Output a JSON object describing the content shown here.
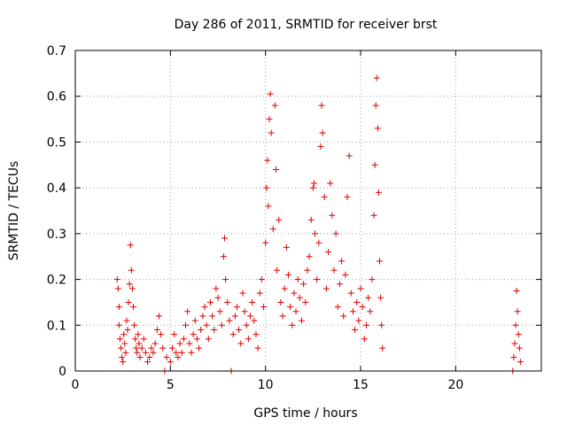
{
  "chart_data": {
    "type": "scatter",
    "title": "Day 286 of 2011, SRMTID for receiver brst",
    "xlabel": "GPS time / hours",
    "ylabel": "SRMTID / TECUs",
    "xlim": [
      0,
      24.5
    ],
    "ylim": [
      0,
      0.7
    ],
    "xticks": [
      0,
      5,
      10,
      15,
      20
    ],
    "yticks": [
      0,
      0.1,
      0.2,
      0.3,
      0.4,
      0.5,
      0.6,
      0.7
    ],
    "grid": true,
    "marker": "+",
    "color": "#e00000",
    "series": [
      {
        "name": "SRMTID",
        "points": [
          [
            2.2,
            0.2
          ],
          [
            2.25,
            0.18
          ],
          [
            2.3,
            0.14
          ],
          [
            2.3,
            0.1
          ],
          [
            2.35,
            0.07
          ],
          [
            2.4,
            0.05
          ],
          [
            2.45,
            0.03
          ],
          [
            2.5,
            0.02
          ],
          [
            2.55,
            0.08
          ],
          [
            2.6,
            0.06
          ],
          [
            2.65,
            0.04
          ],
          [
            2.7,
            0.11
          ],
          [
            2.75,
            0.09
          ],
          [
            2.8,
            0.15
          ],
          [
            2.85,
            0.19
          ],
          [
            2.9,
            0.275
          ],
          [
            2.95,
            0.22
          ],
          [
            3.0,
            0.18
          ],
          [
            3.05,
            0.14
          ],
          [
            3.1,
            0.1
          ],
          [
            3.15,
            0.07
          ],
          [
            3.2,
            0.05
          ],
          [
            3.25,
            0.04
          ],
          [
            3.3,
            0.08
          ],
          [
            3.35,
            0.06
          ],
          [
            3.4,
            0.03
          ],
          [
            3.5,
            0.05
          ],
          [
            3.6,
            0.07
          ],
          [
            3.7,
            0.04
          ],
          [
            3.8,
            0.02
          ],
          [
            3.9,
            0.03
          ],
          [
            4.0,
            0.05
          ],
          [
            4.1,
            0.04
          ],
          [
            4.2,
            0.06
          ],
          [
            4.3,
            0.09
          ],
          [
            4.4,
            0.12
          ],
          [
            4.5,
            0.08
          ],
          [
            4.6,
            0.05
          ],
          [
            4.7,
            0.0
          ],
          [
            4.8,
            0.03
          ],
          [
            5.0,
            0.02
          ],
          [
            5.1,
            0.05
          ],
          [
            5.2,
            0.08
          ],
          [
            5.3,
            0.04
          ],
          [
            5.4,
            0.03
          ],
          [
            5.5,
            0.06
          ],
          [
            5.6,
            0.04
          ],
          [
            5.7,
            0.07
          ],
          [
            5.8,
            0.1
          ],
          [
            5.9,
            0.13
          ],
          [
            6.0,
            0.06
          ],
          [
            6.1,
            0.04
          ],
          [
            6.2,
            0.08
          ],
          [
            6.3,
            0.11
          ],
          [
            6.4,
            0.07
          ],
          [
            6.5,
            0.05
          ],
          [
            6.6,
            0.09
          ],
          [
            6.7,
            0.12
          ],
          [
            6.8,
            0.14
          ],
          [
            6.9,
            0.1
          ],
          [
            7.0,
            0.07
          ],
          [
            7.1,
            0.15
          ],
          [
            7.2,
            0.12
          ],
          [
            7.3,
            0.09
          ],
          [
            7.4,
            0.18
          ],
          [
            7.5,
            0.16
          ],
          [
            7.6,
            0.13
          ],
          [
            7.7,
            0.1
          ],
          [
            7.8,
            0.25
          ],
          [
            7.85,
            0.29
          ],
          [
            7.9,
            0.2
          ],
          [
            8.0,
            0.15
          ],
          [
            8.1,
            0.11
          ],
          [
            8.2,
            0.0
          ],
          [
            8.3,
            0.08
          ],
          [
            8.4,
            0.12
          ],
          [
            8.5,
            0.14
          ],
          [
            8.6,
            0.09
          ],
          [
            8.7,
            0.06
          ],
          [
            8.8,
            0.17
          ],
          [
            8.9,
            0.13
          ],
          [
            9.0,
            0.1
          ],
          [
            9.1,
            0.07
          ],
          [
            9.2,
            0.12
          ],
          [
            9.3,
            0.15
          ],
          [
            9.4,
            0.11
          ],
          [
            9.5,
            0.08
          ],
          [
            9.6,
            0.05
          ],
          [
            9.7,
            0.17
          ],
          [
            9.8,
            0.2
          ],
          [
            9.9,
            0.14
          ],
          [
            10.0,
            0.28
          ],
          [
            10.05,
            0.4
          ],
          [
            10.1,
            0.46
          ],
          [
            10.15,
            0.36
          ],
          [
            10.2,
            0.55
          ],
          [
            10.25,
            0.605
          ],
          [
            10.3,
            0.52
          ],
          [
            10.4,
            0.31
          ],
          [
            10.5,
            0.58
          ],
          [
            10.55,
            0.44
          ],
          [
            10.6,
            0.22
          ],
          [
            10.7,
            0.33
          ],
          [
            10.8,
            0.15
          ],
          [
            10.9,
            0.12
          ],
          [
            11.0,
            0.18
          ],
          [
            11.1,
            0.27
          ],
          [
            11.2,
            0.21
          ],
          [
            11.3,
            0.14
          ],
          [
            11.4,
            0.1
          ],
          [
            11.5,
            0.17
          ],
          [
            11.6,
            0.13
          ],
          [
            11.7,
            0.2
          ],
          [
            11.8,
            0.16
          ],
          [
            11.9,
            0.11
          ],
          [
            12.0,
            0.19
          ],
          [
            12.1,
            0.15
          ],
          [
            12.2,
            0.22
          ],
          [
            12.3,
            0.25
          ],
          [
            12.4,
            0.33
          ],
          [
            12.5,
            0.4
          ],
          [
            12.55,
            0.41
          ],
          [
            12.6,
            0.3
          ],
          [
            12.7,
            0.2
          ],
          [
            12.8,
            0.28
          ],
          [
            12.9,
            0.49
          ],
          [
            12.95,
            0.58
          ],
          [
            13.0,
            0.52
          ],
          [
            13.1,
            0.38
          ],
          [
            13.2,
            0.18
          ],
          [
            13.3,
            0.26
          ],
          [
            13.4,
            0.41
          ],
          [
            13.5,
            0.34
          ],
          [
            13.6,
            0.22
          ],
          [
            13.7,
            0.3
          ],
          [
            13.8,
            0.14
          ],
          [
            13.9,
            0.19
          ],
          [
            14.0,
            0.24
          ],
          [
            14.1,
            0.12
          ],
          [
            14.2,
            0.21
          ],
          [
            14.3,
            0.38
          ],
          [
            14.4,
            0.47
          ],
          [
            14.5,
            0.17
          ],
          [
            14.6,
            0.13
          ],
          [
            14.7,
            0.09
          ],
          [
            14.8,
            0.15
          ],
          [
            14.9,
            0.11
          ],
          [
            15.0,
            0.18
          ],
          [
            15.1,
            0.14
          ],
          [
            15.2,
            0.07
          ],
          [
            15.3,
            0.1
          ],
          [
            15.4,
            0.16
          ],
          [
            15.5,
            0.13
          ],
          [
            15.6,
            0.2
          ],
          [
            15.7,
            0.34
          ],
          [
            15.75,
            0.45
          ],
          [
            15.8,
            0.58
          ],
          [
            15.85,
            0.64
          ],
          [
            15.9,
            0.53
          ],
          [
            15.95,
            0.39
          ],
          [
            16.0,
            0.24
          ],
          [
            16.05,
            0.16
          ],
          [
            16.1,
            0.1
          ],
          [
            16.15,
            0.05
          ],
          [
            23.0,
            0.0
          ],
          [
            23.05,
            0.03
          ],
          [
            23.1,
            0.06
          ],
          [
            23.15,
            0.1
          ],
          [
            23.2,
            0.175
          ],
          [
            23.25,
            0.13
          ],
          [
            23.3,
            0.08
          ],
          [
            23.35,
            0.05
          ],
          [
            23.4,
            0.02
          ]
        ]
      }
    ]
  }
}
